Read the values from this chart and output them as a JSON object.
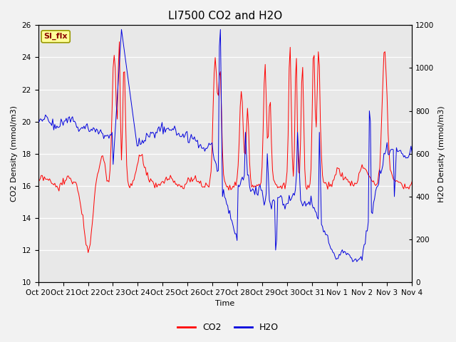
{
  "title": "LI7500 CO2 and H2O",
  "xlabel": "Time",
  "ylabel_left": "CO2 Density (mmol/m3)",
  "ylabel_right": "H2O Density (mmol/m3)",
  "co2_color": "#FF0000",
  "h2o_color": "#0000DD",
  "ylim_left": [
    10,
    26
  ],
  "ylim_right": [
    0,
    1200
  ],
  "plot_bg_color": "#E8E8E8",
  "fig_bg_color": "#F2F2F2",
  "grid_color": "#FFFFFF",
  "annotation_text": "SI_flx",
  "annotation_bg": "#FFFF99",
  "annotation_border": "#999900",
  "x_tick_labels": [
    "Oct 20",
    "Oct 21",
    "Oct 22",
    "Oct 23",
    "Oct 24",
    "Oct 25",
    "Oct 26",
    "Oct 27",
    "Oct 28",
    "Oct 29",
    "Oct 30",
    "Oct 31",
    "Nov 1",
    "Nov 2",
    "Nov 3",
    "Nov 4"
  ],
  "num_days": 15,
  "title_fontsize": 11,
  "label_fontsize": 8,
  "tick_fontsize": 7.5,
  "legend_fontsize": 9
}
